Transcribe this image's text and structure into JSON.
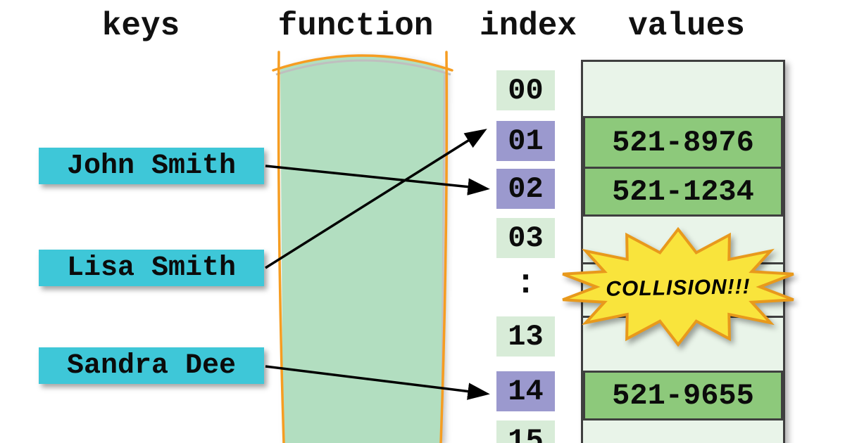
{
  "headers": [
    {
      "label": "keys"
    },
    {
      "label": "function"
    },
    {
      "label": "index"
    },
    {
      "label": "values"
    }
  ],
  "keys": [
    {
      "label": "John Smith"
    },
    {
      "label": "Lisa Smith"
    },
    {
      "label": "Sandra Dee"
    }
  ],
  "index_column": {
    "cells": [
      {
        "label": "00",
        "type": "normal"
      },
      {
        "label": "01",
        "type": "highlight"
      },
      {
        "label": "02",
        "type": "highlight"
      },
      {
        "label": "03",
        "type": "normal"
      },
      {
        "label": ":",
        "type": "ellipsis"
      },
      {
        "label": "13",
        "type": "normal"
      },
      {
        "label": "14",
        "type": "highlight"
      },
      {
        "label": "15",
        "type": "normal"
      }
    ]
  },
  "values_column": {
    "entries": [
      {
        "row": "01",
        "value": "521-8976"
      },
      {
        "row": "02",
        "value": "521-1234"
      },
      {
        "row": "14",
        "value": "521-9655"
      }
    ]
  },
  "mappings": [
    {
      "key": "John Smith",
      "index": "02"
    },
    {
      "key": "Lisa Smith",
      "index": "01"
    },
    {
      "key": "Sandra Dee",
      "index": "14"
    }
  ],
  "collision": {
    "label": "COLLISION!!!"
  },
  "colors": {
    "key_box": "#3ec7d8",
    "index_normal": "#d8ecd8",
    "index_highlight": "#9b99ce",
    "function_band": "#b2dec0",
    "function_outline": "#f69d21",
    "values_bg": "#e9f4e9",
    "value_cell": "#8dc97b",
    "cell_border": "#3f3f3f",
    "collision_fill": "#f9e43c",
    "collision_stroke": "#e8991c",
    "arrow": "#000000"
  }
}
